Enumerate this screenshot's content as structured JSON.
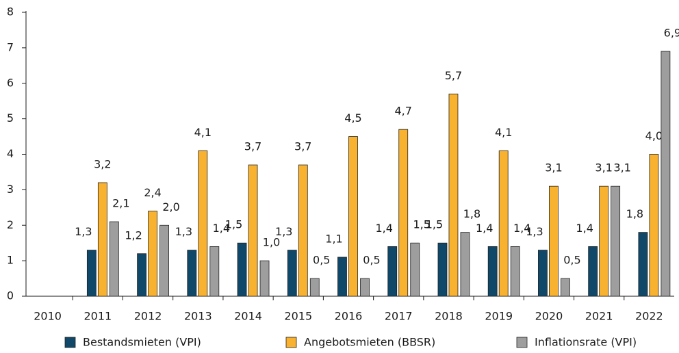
{
  "chart_data": {
    "type": "bar",
    "categories": [
      "2010",
      "2011",
      "2012",
      "2013",
      "2014",
      "2015",
      "2016",
      "2017",
      "2018",
      "2019",
      "2020",
      "2021",
      "2022"
    ],
    "series": [
      {
        "name": "Bestandsmieten (VPI)",
        "color": "#0f4869",
        "values": [
          null,
          1.3,
          1.2,
          1.3,
          1.5,
          1.3,
          1.1,
          1.4,
          1.5,
          1.4,
          1.3,
          1.4,
          1.8
        ],
        "value_labels": [
          null,
          "1,3",
          "1,2",
          "1,3",
          "1,5",
          "1,3",
          "1,1",
          "1,4",
          "1,5",
          "1,4",
          "1,3",
          "1,4",
          "1,8"
        ]
      },
      {
        "name": "Angebotsmieten (BBSR)",
        "color": "#f8b230",
        "values": [
          null,
          3.2,
          2.4,
          4.1,
          3.7,
          3.7,
          4.5,
          4.7,
          5.7,
          4.1,
          3.1,
          3.1,
          4.0
        ],
        "value_labels": [
          null,
          "3,2",
          "2,4",
          "4,1",
          "3,7",
          "3,7",
          "4,5",
          "4,7",
          "5,7",
          "4,1",
          "3,1",
          "3,1",
          "4,0"
        ]
      },
      {
        "name": "Inflationsrate (VPI)",
        "color": "#9e9e9e",
        "values": [
          null,
          2.1,
          2.0,
          1.4,
          1.0,
          0.5,
          0.5,
          1.5,
          1.8,
          1.4,
          0.5,
          3.1,
          6.9
        ],
        "value_labels": [
          null,
          "2,1",
          "2,0",
          "1,4",
          "1,0",
          "0,5",
          "0,5",
          "1,5",
          "1,8",
          "1,4",
          "0,5",
          "3,1",
          "6,9"
        ]
      }
    ],
    "ylim": [
      0,
      8
    ],
    "yticks": [
      0,
      1,
      2,
      3,
      4,
      5,
      6,
      7,
      8
    ]
  }
}
